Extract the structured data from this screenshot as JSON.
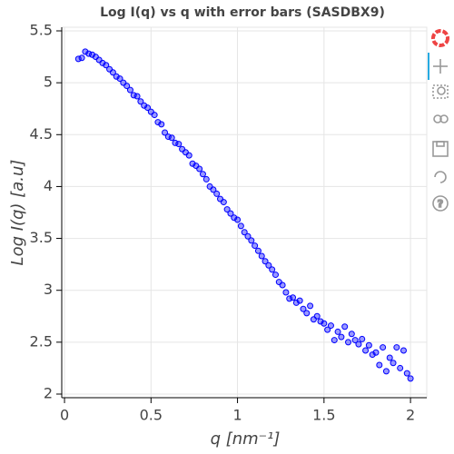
{
  "chart_data": {
    "type": "scatter",
    "title": "Log I(q) vs q with error bars (SASDBX9)",
    "x_label": "q [nm⁻¹]",
    "y_label": "Log I(q) [a.u]",
    "color": "#0000ff",
    "grid": true,
    "xlim": [
      -0.016,
      2.094
    ],
    "ylim": [
      1.965,
      5.535
    ],
    "xticks": [
      0,
      0.5,
      1,
      1.5,
      2
    ],
    "yticks": [
      2,
      2.5,
      3,
      3.5,
      4,
      4.5,
      5,
      5.5
    ],
    "x": [
      0.08,
      0.1,
      0.12,
      0.14,
      0.16,
      0.18,
      0.2,
      0.22,
      0.24,
      0.26,
      0.28,
      0.3,
      0.32,
      0.34,
      0.36,
      0.38,
      0.4,
      0.42,
      0.44,
      0.46,
      0.48,
      0.5,
      0.52,
      0.54,
      0.56,
      0.58,
      0.6,
      0.62,
      0.64,
      0.66,
      0.68,
      0.7,
      0.72,
      0.74,
      0.76,
      0.78,
      0.8,
      0.82,
      0.84,
      0.86,
      0.88,
      0.9,
      0.92,
      0.94,
      0.96,
      0.98,
      1.0,
      1.02,
      1.04,
      1.06,
      1.08,
      1.1,
      1.12,
      1.14,
      1.16,
      1.18,
      1.2,
      1.22,
      1.24,
      1.26,
      1.28,
      1.3,
      1.32,
      1.34,
      1.36,
      1.38,
      1.4,
      1.42,
      1.44,
      1.46,
      1.48,
      1.5,
      1.52,
      1.54,
      1.56,
      1.58,
      1.6,
      1.62,
      1.64,
      1.66,
      1.68,
      1.7,
      1.72,
      1.74,
      1.76,
      1.78,
      1.8,
      1.82,
      1.84,
      1.86,
      1.88,
      1.9,
      1.92,
      1.94,
      1.96,
      1.98,
      2.0
    ],
    "values": [
      5.23,
      5.24,
      5.3,
      5.28,
      5.27,
      5.25,
      5.22,
      5.19,
      5.17,
      5.13,
      5.1,
      5.06,
      5.04,
      5.0,
      4.97,
      4.93,
      4.88,
      4.87,
      4.82,
      4.78,
      4.76,
      4.72,
      4.69,
      4.62,
      4.6,
      4.52,
      4.48,
      4.47,
      4.42,
      4.41,
      4.36,
      4.33,
      4.3,
      4.22,
      4.2,
      4.17,
      4.12,
      4.07,
      4.0,
      3.97,
      3.93,
      3.88,
      3.85,
      3.78,
      3.74,
      3.7,
      3.68,
      3.62,
      3.56,
      3.52,
      3.48,
      3.43,
      3.38,
      3.33,
      3.28,
      3.24,
      3.2,
      3.15,
      3.08,
      3.05,
      2.98,
      2.92,
      2.93,
      2.88,
      2.9,
      2.82,
      2.78,
      2.85,
      2.72,
      2.75,
      2.7,
      2.68,
      2.62,
      2.66,
      2.52,
      2.6,
      2.55,
      2.65,
      2.5,
      2.58,
      2.52,
      2.48,
      2.53,
      2.42,
      2.47,
      2.38,
      2.4,
      2.28,
      2.45,
      2.22,
      2.35,
      2.3,
      2.45,
      2.25,
      2.42,
      2.2,
      2.15
    ]
  }
}
